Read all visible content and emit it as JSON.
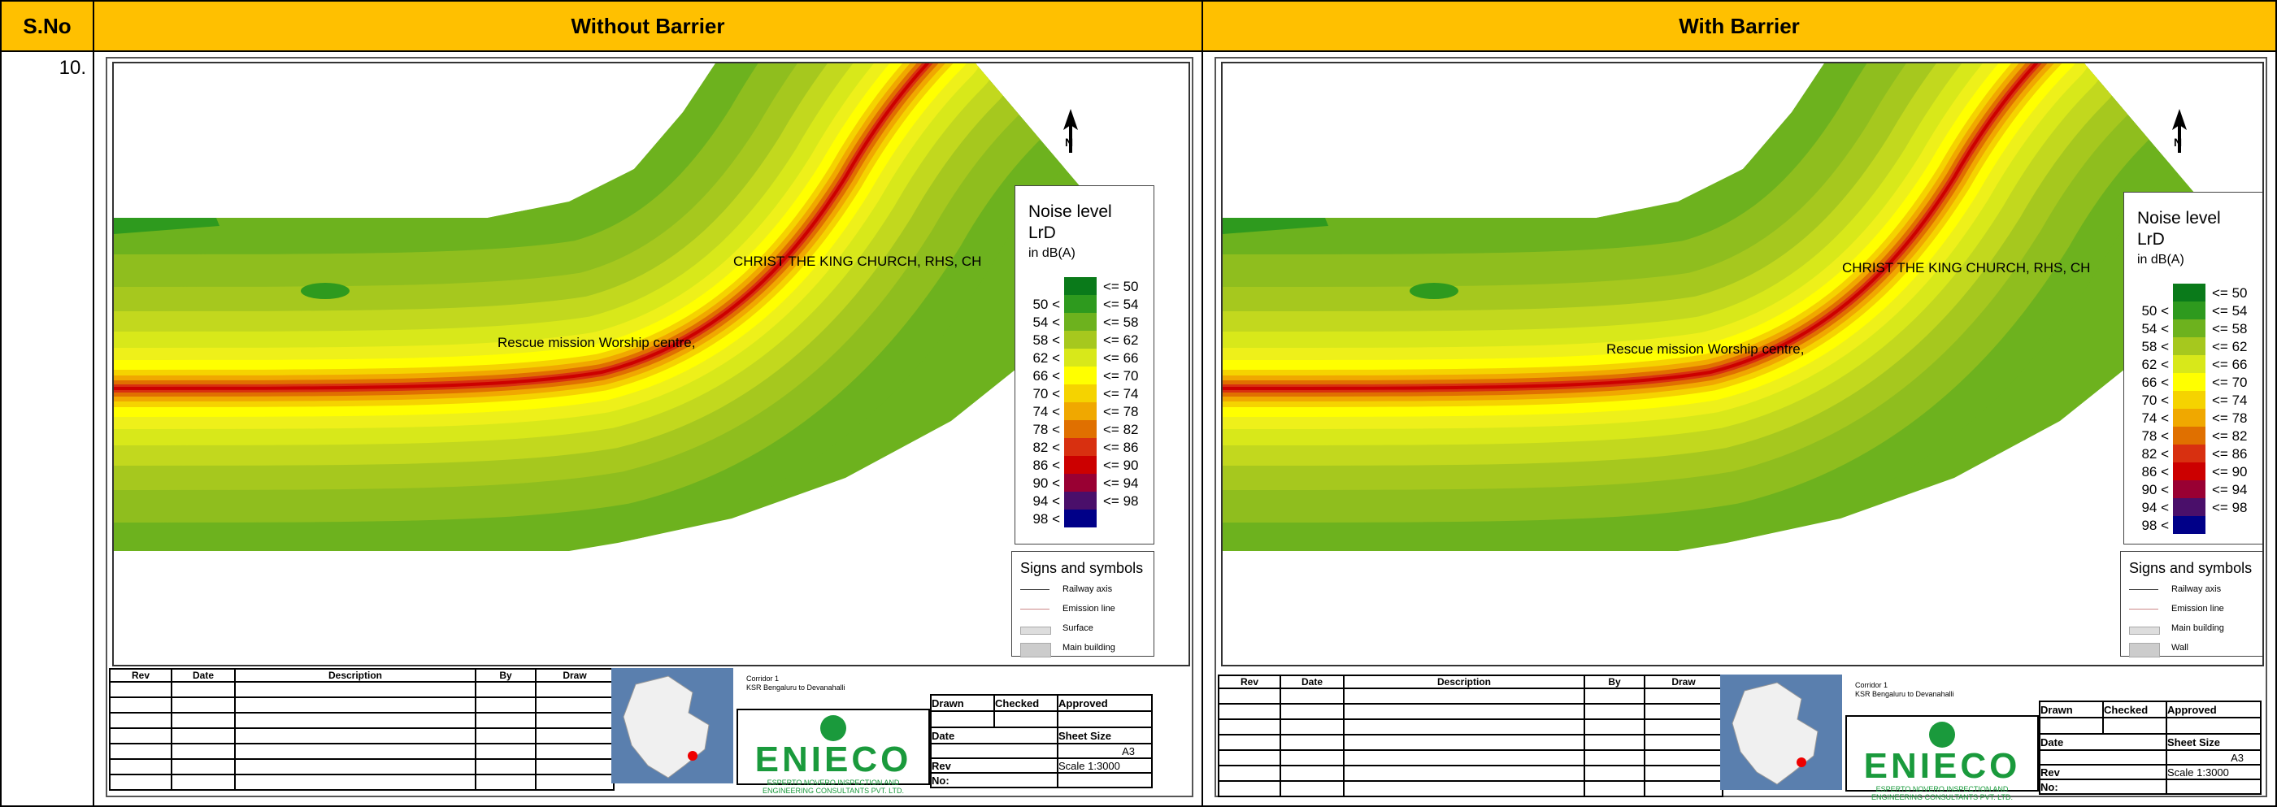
{
  "header": {
    "sno": "S.No",
    "col1": "Without Barrier",
    "col2": "With Barrier"
  },
  "row": {
    "sno": "10."
  },
  "map": {
    "label_church": "CHRIST THE KING CHURCH, RHS, CH",
    "label_rescue": "Rescue mission Worship centre,",
    "north_icon": "north-arrow-icon"
  },
  "legend": {
    "title1": "Noise level",
    "title2": "LrD",
    "title3": "in dB(A)",
    "rows": [
      {
        "lo": "",
        "hi": "<= 50",
        "color": "#0a7a1a"
      },
      {
        "lo": "50 <",
        "hi": "<= 54",
        "color": "#2e9a1e"
      },
      {
        "lo": "54 <",
        "hi": "<= 58",
        "color": "#6db21e"
      },
      {
        "lo": "58 <",
        "hi": "<= 62",
        "color": "#a6c81e"
      },
      {
        "lo": "62 <",
        "hi": "<= 66",
        "color": "#d8e81a"
      },
      {
        "lo": "66 <",
        "hi": "<= 70",
        "color": "#ffff00"
      },
      {
        "lo": "70 <",
        "hi": "<= 74",
        "color": "#f5d300"
      },
      {
        "lo": "74 <",
        "hi": "<= 78",
        "color": "#f0a800"
      },
      {
        "lo": "78 <",
        "hi": "<= 82",
        "color": "#e07000"
      },
      {
        "lo": "82 <",
        "hi": "<= 86",
        "color": "#d83010"
      },
      {
        "lo": "86 <",
        "hi": "<= 90",
        "color": "#cc0000"
      },
      {
        "lo": "90 <",
        "hi": "<= 94",
        "color": "#990033"
      },
      {
        "lo": "94 <",
        "hi": "<= 98",
        "color": "#4a0f6a"
      },
      {
        "lo": "98 <",
        "hi": "",
        "color": "#000088"
      }
    ]
  },
  "signs_left": {
    "title": "Signs and symbols",
    "items": [
      "Railway axis",
      "Emission line",
      "Surface",
      "Main building"
    ]
  },
  "signs_right": {
    "title": "Signs and symbols",
    "items": [
      "Railway axis",
      "Emission line",
      "Main building",
      "Wall"
    ]
  },
  "titleblock": {
    "rev_headers": [
      "Rev",
      "Date",
      "Description",
      "By",
      "Draw"
    ],
    "project_line1": "Corridor 1",
    "project_line2": "KSR Bengaluru to Devanahalli",
    "logo_text": "ENIECO",
    "logo_sub1": "ESPERTO NOVERO INSPECTION AND",
    "logo_sub2": "ENGINEERING CONSULTANTS PVT. LTD.",
    "drawn": "Drawn",
    "checked": "Checked",
    "approved": "Approved",
    "date": "Date",
    "sheet_size": "Sheet Size",
    "sheet_size_val": "A3",
    "rev": "Rev",
    "no": "No:",
    "scale": "Scale 1:3000"
  }
}
